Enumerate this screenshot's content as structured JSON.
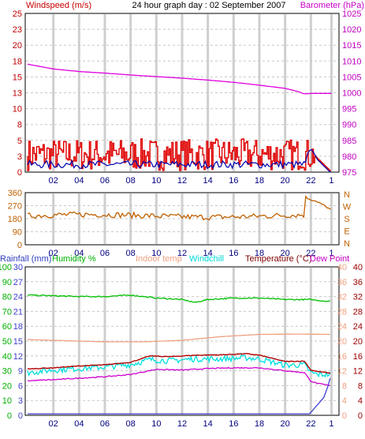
{
  "chart_data": [
    {
      "type": "line",
      "title": "24 hour graph day : 02 September 2007",
      "left_label": "Windspeed (m/s)",
      "right_label": "Barometer (hPa)",
      "x_tick_labels": [
        "02",
        "04",
        "06",
        "08",
        "10",
        "12",
        "14",
        "16",
        "18",
        "20",
        "22",
        "1"
      ],
      "left_ticks": [
        "0",
        "3",
        "5",
        "8",
        "10",
        "13",
        "15",
        "18",
        "20",
        "23",
        "25"
      ],
      "left_range": [
        0,
        25
      ],
      "right_ticks": [
        "975",
        "980",
        "985",
        "990",
        "995",
        "1000",
        "1005",
        "1010",
        "1015",
        "1020",
        "1025"
      ],
      "right_range": [
        975,
        1025
      ],
      "colors": {
        "wind_gust": "#e00000",
        "wind_avg": "#0000b0",
        "barometer": "#e000e0",
        "grid": "#c8c8c8",
        "title_left": "#c80000",
        "title_right": "#c800c8"
      },
      "series": [
        {
          "name": "Barometer",
          "axis": "right",
          "x": [
            0,
            2,
            4,
            6,
            8,
            10,
            12,
            14,
            16,
            18,
            20,
            21,
            21.5,
            22,
            23.5
          ],
          "values": [
            1009,
            1007.5,
            1006.7,
            1006.2,
            1005.6,
            1005.1,
            1004.6,
            1004.0,
            1003.3,
            1002.4,
            1001.4,
            1000.4,
            999.6,
            999.8,
            999.8
          ]
        },
        {
          "name": "Wind gust",
          "axis": "left",
          "mean": 2.5,
          "spread": 5,
          "max": 8.3
        },
        {
          "name": "Wind average",
          "axis": "left",
          "mean": 1.2,
          "spread": 1.2,
          "end_rise": 3.7
        }
      ]
    },
    {
      "type": "line",
      "left_ticks": [
        "0",
        "90",
        "180",
        "270",
        "360"
      ],
      "left_range": [
        0,
        360
      ],
      "right_labels": [
        "N",
        "W",
        "S",
        "E",
        "N"
      ],
      "x_tick_labels": [
        "02",
        "04",
        "06",
        "08",
        "10",
        "12",
        "14",
        "16",
        "18",
        "20",
        "22",
        "1"
      ],
      "colors": {
        "direction": "#c06000"
      },
      "series": [
        {
          "name": "Wind direction",
          "mean": 200,
          "spread": 40,
          "end_x": [
            21.5,
            22.5,
            23.5
          ],
          "end_values": [
            330,
            300,
            240
          ]
        }
      ]
    },
    {
      "type": "line",
      "headers": [
        {
          "text": "Rainfall (mm)",
          "color": "#3040c0"
        },
        {
          "text": "Humidity %",
          "color": "#00b000"
        },
        {
          "text": "Indoor temp",
          "color": "#f0a080"
        },
        {
          "text": "Windchill",
          "color": "#00d8d8"
        },
        {
          "text": "Temperature (°C)",
          "color": "#800000"
        },
        {
          "text": "Dew Point",
          "color": "#c000c0"
        }
      ],
      "rain_ticks": [
        "0",
        "3",
        "6",
        "9",
        "12",
        "15",
        "18",
        "21",
        "24",
        "27",
        "30"
      ],
      "humidity_ticks": [
        "0",
        "10",
        "20",
        "30",
        "40",
        "50",
        "60",
        "70",
        "80",
        "90",
        "100"
      ],
      "right_ticks_a": [
        "0",
        "4",
        "8",
        "12",
        "16",
        "20",
        "24",
        "28",
        "32",
        "36",
        "40"
      ],
      "right_ticks_b": [
        "0",
        "4",
        "8",
        "12",
        "16",
        "20",
        "24",
        "28",
        "32",
        "36",
        "40"
      ],
      "x_tick_labels": [
        "02",
        "04",
        "06",
        "08",
        "10",
        "12",
        "14",
        "16",
        "18",
        "20",
        "22",
        "1"
      ],
      "colors": {
        "humidity": "#00c000",
        "indoor": "#f0a080",
        "windchill": "#00e0e0",
        "temperature": "#b00000",
        "dewpoint": "#d000d0",
        "rain": "#4040d0"
      },
      "series": [
        {
          "name": "Humidity",
          "unit": "%",
          "x": [
            0,
            4,
            6,
            8,
            10,
            12,
            13,
            14,
            16,
            18,
            20,
            22,
            23,
            23.6
          ],
          "values": [
            81,
            80,
            80,
            81,
            79,
            78,
            76,
            78,
            79,
            79,
            78,
            78,
            77,
            77
          ]
        },
        {
          "name": "Indoor temp",
          "unit": "C",
          "x": [
            0,
            6,
            9,
            12,
            15,
            18,
            21,
            23.6
          ],
          "values": [
            20.4,
            19.8,
            19.8,
            20.2,
            21.2,
            21.8,
            21.9,
            21.8
          ]
        },
        {
          "name": "Temperature",
          "unit": "C",
          "x": [
            0,
            2,
            4,
            6,
            8,
            9.5,
            11,
            13,
            15,
            17,
            18,
            20,
            21.5,
            22,
            22.5,
            23,
            23.6
          ],
          "values": [
            12.5,
            12.8,
            13.3,
            13.6,
            14.3,
            16.0,
            15.8,
            16.2,
            16.3,
            16.6,
            16.2,
            14.5,
            14.6,
            12.2,
            11.8,
            11.6,
            11.3
          ]
        },
        {
          "name": "Windchill",
          "unit": "C",
          "x": [
            0,
            2,
            4,
            6,
            8,
            9.5,
            11,
            13,
            15,
            17,
            18,
            20,
            21.5,
            22,
            22.5,
            23,
            23.6
          ],
          "values": [
            11.5,
            12.2,
            12.6,
            13.0,
            13.7,
            15.0,
            14.7,
            15.2,
            15.2,
            15.5,
            15.2,
            13.5,
            13.6,
            11.5,
            11.0,
            11.0,
            11.0
          ]
        },
        {
          "name": "Dew Point",
          "unit": "C",
          "x": [
            0,
            2,
            4,
            6,
            8,
            10,
            12,
            14,
            16,
            18,
            20,
            21.5,
            22,
            22.5,
            23,
            23.6
          ],
          "values": [
            9.3,
            9.6,
            10.0,
            10.4,
            11.0,
            12.4,
            12.2,
            12.6,
            12.8,
            12.8,
            12.0,
            11.5,
            9.2,
            8.6,
            8.3,
            7.9
          ]
        },
        {
          "name": "Rainfall",
          "unit": "mm",
          "x": [
            0,
            21.9,
            22.2,
            22.6,
            23.0,
            23.3,
            23.6
          ],
          "values": [
            0.3,
            0.3,
            1.2,
            2.4,
            3.6,
            5.7,
            8.4
          ]
        }
      ]
    }
  ]
}
